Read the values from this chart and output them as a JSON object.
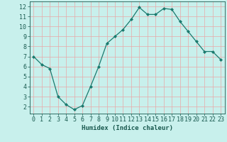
{
  "x": [
    0,
    1,
    2,
    3,
    4,
    5,
    6,
    7,
    8,
    9,
    10,
    11,
    12,
    13,
    14,
    15,
    16,
    17,
    18,
    19,
    20,
    21,
    22,
    23
  ],
  "y": [
    7.0,
    6.2,
    5.8,
    3.0,
    2.2,
    1.7,
    2.1,
    4.0,
    6.0,
    8.3,
    9.0,
    9.7,
    10.7,
    11.9,
    11.2,
    11.2,
    11.8,
    11.7,
    10.5,
    9.5,
    8.5,
    7.5,
    7.5,
    6.7
  ],
  "line_color": "#1a7a6e",
  "marker": "D",
  "marker_size": 2.0,
  "bg_color": "#c8f0ec",
  "grid_color": "#e8a8a8",
  "xlabel": "Humidex (Indice chaleur)",
  "xlim": [
    -0.5,
    23.5
  ],
  "ylim": [
    1.3,
    12.5
  ],
  "yticks": [
    2,
    3,
    4,
    5,
    6,
    7,
    8,
    9,
    10,
    11,
    12
  ],
  "xticks": [
    0,
    1,
    2,
    3,
    4,
    5,
    6,
    7,
    8,
    9,
    10,
    11,
    12,
    13,
    14,
    15,
    16,
    17,
    18,
    19,
    20,
    21,
    22,
    23
  ],
  "xlabel_fontsize": 6.5,
  "tick_fontsize": 6.0,
  "xlabel_color": "#1a5a50",
  "tick_color": "#1a5a50",
  "axis_color": "#1a5a50"
}
